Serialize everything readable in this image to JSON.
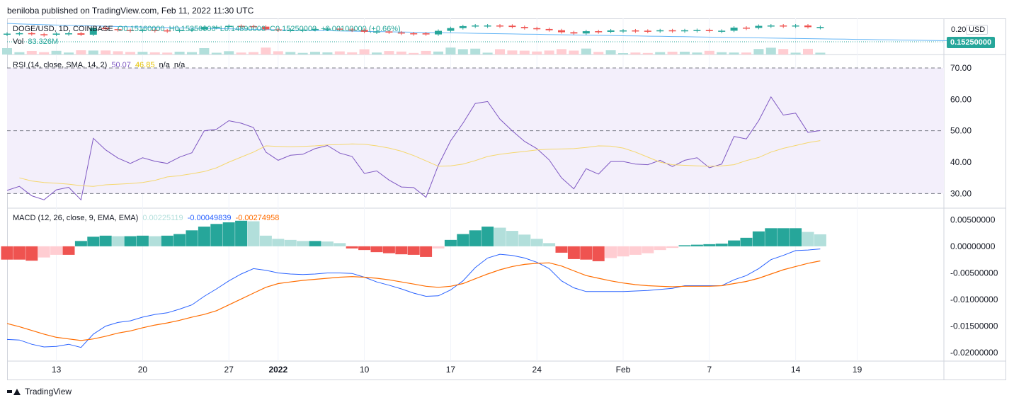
{
  "header": {
    "publisher_line": "beniloba published on TradingView.com, Feb 11, 2022 11:30 UTC"
  },
  "footer": {
    "brand": "TradingView"
  },
  "main_legend": {
    "symbol": "DOGE/USD, 1D, COINBASE",
    "open": "O0.15160000",
    "high": "H0.15350000",
    "low": "L0.14890000",
    "close": "C0.15250000",
    "change": "+0.00100000 (+0.66%)",
    "vol_label": "Vol",
    "vol_value": "83.326M"
  },
  "price_axis": {
    "tick": "0.20",
    "currency": "USD",
    "last_price": "0.15250000"
  },
  "rsi_legend": {
    "label": "RSI (14, close, SMA, 14, 2)",
    "rsi": "50.07",
    "sma": "46.85",
    "na1": "n/a",
    "na2": "n/a"
  },
  "macd_legend": {
    "label": "MACD (12, 26, close, 9, EMA, EMA)",
    "hist": "0.00225119",
    "macd": "-0.00049839",
    "signal": "-0.00274958"
  },
  "colors": {
    "up": "#26a69a",
    "down": "#ef5350",
    "up_light": "#b2dfdb",
    "down_light": "#ffcdd2",
    "rsi_line": "#7e57c2",
    "rsi_sma": "#f5d76e",
    "rsi_band": "#f3effb",
    "macd_line": "#2962ff",
    "signal_line": "#ff6d00",
    "ma_line": "#64b5f6"
  },
  "x_axis": {
    "labels": [
      "13",
      "20",
      "27",
      "2022",
      "10",
      "17",
      "24",
      "Feb",
      "7",
      "14",
      "19"
    ],
    "label_bar_index": [
      4,
      11,
      18,
      22,
      29,
      36,
      43,
      50,
      57,
      64,
      69
    ]
  },
  "chart_data": [
    {
      "type": "line",
      "title": "RSI (14, close, SMA, 14, 2)",
      "y_ticks": [
        "70.00",
        "60.00",
        "50.00",
        "40.00",
        "30.00"
      ],
      "ylim": [
        25.8,
        73.6
      ],
      "bands": {
        "upper": 70,
        "middle": 50,
        "lower": 30
      },
      "series": [
        {
          "name": "RSI",
          "values": [
            31,
            32.3,
            29.3,
            28,
            31.2,
            32,
            28,
            47.6,
            43.9,
            41.3,
            39.6,
            41.4,
            40.3,
            39.6,
            41.6,
            43,
            50,
            50.5,
            53.2,
            52.4,
            51,
            43.2,
            40.6,
            42.2,
            42.5,
            44.3,
            45.3,
            42.9,
            41.8,
            36.4,
            37.2,
            34.3,
            32.1,
            31.9,
            28.8,
            39,
            46.8,
            52.4,
            58.7,
            59.3,
            53.7,
            50,
            46.6,
            44.3,
            40.7,
            35,
            31.5,
            37.9,
            36.2,
            40.2,
            40.2,
            39.4,
            39.2,
            40.6,
            38.6,
            40.6,
            41.4,
            38.2,
            39.4,
            48.2,
            47.4,
            53.2,
            60.8,
            55,
            55.6,
            49.5,
            50.07
          ]
        },
        {
          "name": "RSI-based MA",
          "values": [
            35,
            34,
            33.5,
            33.3,
            33,
            32.5,
            32.3,
            32.8,
            33,
            33.2,
            33.5,
            34.2,
            35.3,
            35.7,
            36.3,
            37,
            38.2,
            40,
            41.6,
            43.2,
            45.2,
            45,
            44.9,
            45,
            45.2,
            45.5,
            45.6,
            45.8,
            45.7,
            45.2,
            44.5,
            43.5,
            42.1,
            40.4,
            38.7,
            38.8,
            39.4,
            40.5,
            41.8,
            42.5,
            43,
            43.4,
            43.9,
            44.1,
            44.2,
            44.3,
            44.7,
            45.2,
            45.1,
            44.5,
            43.2,
            41.6,
            40,
            39.2,
            39,
            38.8,
            38.7,
            38.8,
            39.2,
            40.5,
            41.5,
            43.2,
            44.4,
            45.3,
            46.2,
            46.85
          ]
        }
      ]
    },
    {
      "type": "bar",
      "title": "MACD (12, 26, close, 9, EMA, EMA)",
      "y_ticks": [
        "0.00500000",
        "0.00000000",
        "-0.00500000",
        "-0.01000000",
        "-0.01500000",
        "-0.02000000"
      ],
      "ylim": [
        -0.0213,
        0.0069
      ],
      "series": [
        {
          "name": "Histogram",
          "values": [
            -0.0025,
            -0.0025,
            -0.0027,
            -0.0021,
            -0.0016,
            -0.0016,
            0.001,
            0.0018,
            0.002,
            0.0019,
            0.0019,
            0.002,
            0.0019,
            0.002,
            0.0023,
            0.003,
            0.0037,
            0.0042,
            0.0045,
            0.0048,
            0.0047,
            0.002,
            0.0014,
            0.0012,
            0.001,
            0.001,
            0.0009,
            0.0006,
            -0.0004,
            -0.0007,
            -0.0011,
            -0.0013,
            -0.0015,
            -0.0016,
            -0.002,
            -0.0004,
            0.0012,
            0.0023,
            0.003,
            0.0037,
            0.0035,
            0.0029,
            0.0022,
            0.0014,
            0.0006,
            -0.0012,
            -0.0024,
            -0.0025,
            -0.0028,
            -0.0022,
            -0.0019,
            -0.0016,
            -0.0013,
            -0.0007,
            -0.0003,
            0.0002,
            0.0003,
            0.0004,
            0.0005,
            0.0011,
            0.0016,
            0.0028,
            0.0034,
            0.0034,
            0.0034,
            0.0027,
            0.00225119
          ]
        },
        {
          "name": "MACD",
          "values": [
            -0.0175,
            -0.0176,
            -0.0184,
            -0.0189,
            -0.0188,
            -0.0184,
            -0.019,
            -0.0165,
            -0.015,
            -0.0143,
            -0.014,
            -0.0133,
            -0.0128,
            -0.0125,
            -0.0118,
            -0.011,
            -0.0094,
            -0.008,
            -0.0065,
            -0.0052,
            -0.0042,
            -0.0045,
            -0.005,
            -0.0052,
            -0.0053,
            -0.0052,
            -0.005,
            -0.005,
            -0.0051,
            -0.0058,
            -0.0067,
            -0.0073,
            -0.008,
            -0.0088,
            -0.0094,
            -0.0093,
            -0.0082,
            -0.0065,
            -0.004,
            -0.0022,
            -0.0015,
            -0.0017,
            -0.0022,
            -0.003,
            -0.0042,
            -0.0065,
            -0.0078,
            -0.0085,
            -0.0085,
            -0.0085,
            -0.0085,
            -0.0084,
            -0.0083,
            -0.0081,
            -0.0079,
            -0.0074,
            -0.0074,
            -0.0074,
            -0.0074,
            -0.0063,
            -0.0055,
            -0.0042,
            -0.0025,
            -0.0017,
            -0.0008,
            -0.0007,
            -0.00049839
          ]
        },
        {
          "name": "Signal",
          "values": [
            -0.0145,
            -0.0151,
            -0.0158,
            -0.0165,
            -0.0171,
            -0.0174,
            -0.0177,
            -0.0174,
            -0.0169,
            -0.0163,
            -0.0159,
            -0.0153,
            -0.0148,
            -0.0144,
            -0.0139,
            -0.0133,
            -0.0128,
            -0.0121,
            -0.011,
            -0.0099,
            -0.0088,
            -0.0077,
            -0.007,
            -0.0067,
            -0.0064,
            -0.0062,
            -0.006,
            -0.0058,
            -0.0057,
            -0.0058,
            -0.006,
            -0.0063,
            -0.0067,
            -0.0071,
            -0.0075,
            -0.0077,
            -0.0075,
            -0.007,
            -0.0061,
            -0.0052,
            -0.0044,
            -0.0038,
            -0.0034,
            -0.0032,
            -0.0031,
            -0.0037,
            -0.0046,
            -0.0055,
            -0.006,
            -0.0065,
            -0.0069,
            -0.0072,
            -0.0074,
            -0.0075,
            -0.0076,
            -0.0075,
            -0.0075,
            -0.0075,
            -0.0074,
            -0.007,
            -0.0066,
            -0.006,
            -0.0052,
            -0.0044,
            -0.0038,
            -0.0032,
            -0.00274958
          ]
        }
      ]
    }
  ]
}
